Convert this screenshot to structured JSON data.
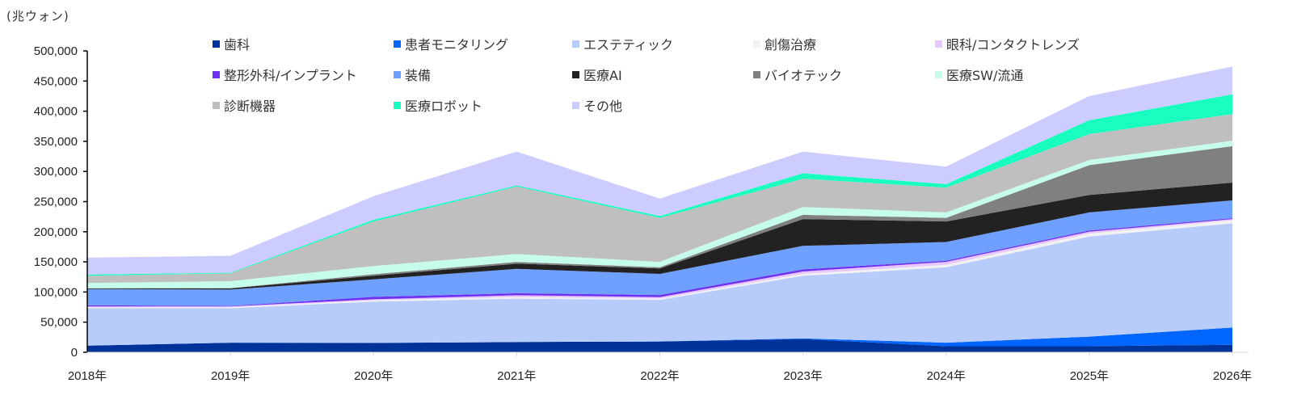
{
  "chart_data": {
    "type": "area",
    "stacked": true,
    "unit_label": "(兆ウォン)",
    "categories": [
      "2018年",
      "2019年",
      "2020年",
      "2021年",
      "2022年",
      "2023年",
      "2024年",
      "2025年",
      "2026年"
    ],
    "ylim": [
      0,
      500000
    ],
    "yticks": [
      0,
      50000,
      100000,
      150000,
      200000,
      250000,
      300000,
      350000,
      400000,
      450000,
      500000
    ],
    "ytick_labels": [
      "0",
      "50,000",
      "100,000",
      "150,000",
      "200,000",
      "250,000",
      "300,000",
      "350,000",
      "400,000",
      "450,000",
      "500,000"
    ],
    "grid": false,
    "legend_position": "top",
    "series": [
      {
        "name": "歯科",
        "color": "#003399",
        "values": [
          11000,
          16000,
          15600,
          17000,
          18000,
          22000,
          10000,
          10000,
          12500
        ]
      },
      {
        "name": "患者モニタリング",
        "color": "#0066FF",
        "values": [
          0,
          0,
          0,
          0,
          0,
          1000,
          6000,
          16000,
          28500
        ]
      },
      {
        "name": "エステティック",
        "color": "#B8CCFC",
        "values": [
          62000,
          57000,
          68400,
          72000,
          69000,
          104000,
          125000,
          166000,
          173000
        ]
      },
      {
        "name": "創傷治療",
        "color": "#F2F2F2",
        "values": [
          1500,
          1500,
          2000,
          2600,
          2000,
          3000,
          4000,
          5000,
          5000
        ]
      },
      {
        "name": "眼科/コンタクトレンズ",
        "color": "#E6C8FF",
        "values": [
          1500,
          1500,
          2000,
          3100,
          2600,
          4000,
          5000,
          3000,
          2000
        ]
      },
      {
        "name": "整形外科/インプラント",
        "color": "#7030F0",
        "values": [
          2000,
          1000,
          4000,
          3300,
          3400,
          3600,
          2000,
          2000,
          1500
        ]
      },
      {
        "name": "装備",
        "color": "#6FA0FF",
        "values": [
          27000,
          27000,
          29000,
          40500,
          35000,
          38900,
          31000,
          30000,
          29500
        ]
      },
      {
        "name": "医療AI",
        "color": "#222222",
        "values": [
          1000,
          2000,
          6000,
          8500,
          9000,
          44500,
          34000,
          29000,
          29500
        ]
      },
      {
        "name": "バイオテック",
        "color": "#808080",
        "values": [
          500,
          500,
          2500,
          3000,
          2000,
          7000,
          6000,
          49500,
          60500
        ]
      },
      {
        "name": "医療SW/流通",
        "color": "#C6FCEC",
        "values": [
          8500,
          11500,
          13500,
          13000,
          9000,
          13000,
          9000,
          8500,
          9000
        ]
      },
      {
        "name": "診断機器",
        "color": "#BFBFBF",
        "values": [
          12000,
          13000,
          74000,
          112000,
          73000,
          47000,
          41000,
          43000,
          44000
        ]
      },
      {
        "name": "医療ロボット",
        "color": "#19FFC0",
        "values": [
          2000,
          1000,
          3000,
          2000,
          3000,
          9000,
          6000,
          23000,
          33000
        ]
      },
      {
        "name": "その他",
        "color": "#CCCCFF",
        "values": [
          28000,
          28000,
          39000,
          56000,
          29000,
          36000,
          29000,
          40000,
          46000
        ]
      }
    ]
  }
}
